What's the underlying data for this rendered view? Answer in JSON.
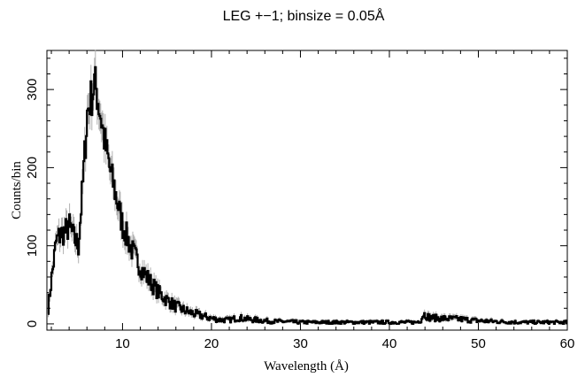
{
  "chart_data": {
    "type": "line",
    "title": "LEG +−1; binsize = 0.05Å",
    "xlabel": "Wavelength (Å)",
    "ylabel": "Counts/bin",
    "xlim": [
      1.5,
      60
    ],
    "ylim": [
      -8,
      350
    ],
    "x_ticks_major": [
      10,
      20,
      30,
      40,
      50,
      60
    ],
    "y_ticks_major": [
      0,
      100,
      200,
      300
    ],
    "grid": false,
    "legend": "none",
    "series": [
      {
        "style": "histogram step with grey error bars",
        "color": "#000000",
        "error_color": "#b0b0b0",
        "x": [
          1.6,
          2.0,
          2.5,
          3.0,
          3.5,
          4.0,
          4.5,
          5.0,
          5.5,
          6.0,
          6.3,
          6.6,
          6.8,
          7.0,
          7.3,
          7.6,
          8.0,
          8.5,
          9.0,
          9.5,
          10.0,
          11.0,
          12.0,
          13.0,
          14.0,
          15.0,
          16.0,
          17.0,
          18.0,
          19.0,
          20.0,
          21.0,
          22.0,
          23.0,
          24.0,
          25.0,
          26.0,
          27.0,
          28.0,
          30.0,
          35.0,
          40.0,
          43.0,
          43.5,
          43.8,
          44.5,
          46.0,
          48.0,
          50.0,
          52.0,
          55.0,
          60.0
        ],
        "values": [
          20,
          60,
          105,
          115,
          118,
          125,
          110,
          100,
          180,
          270,
          285,
          295,
          310,
          300,
          280,
          260,
          230,
          200,
          175,
          150,
          125,
          95,
          72,
          55,
          40,
          30,
          22,
          17,
          13,
          10,
          7,
          5,
          5,
          8,
          6,
          5,
          4,
          3,
          3,
          2,
          2,
          2,
          2,
          5,
          13,
          8,
          7,
          6,
          4,
          3,
          2,
          2
        ]
      }
    ]
  }
}
